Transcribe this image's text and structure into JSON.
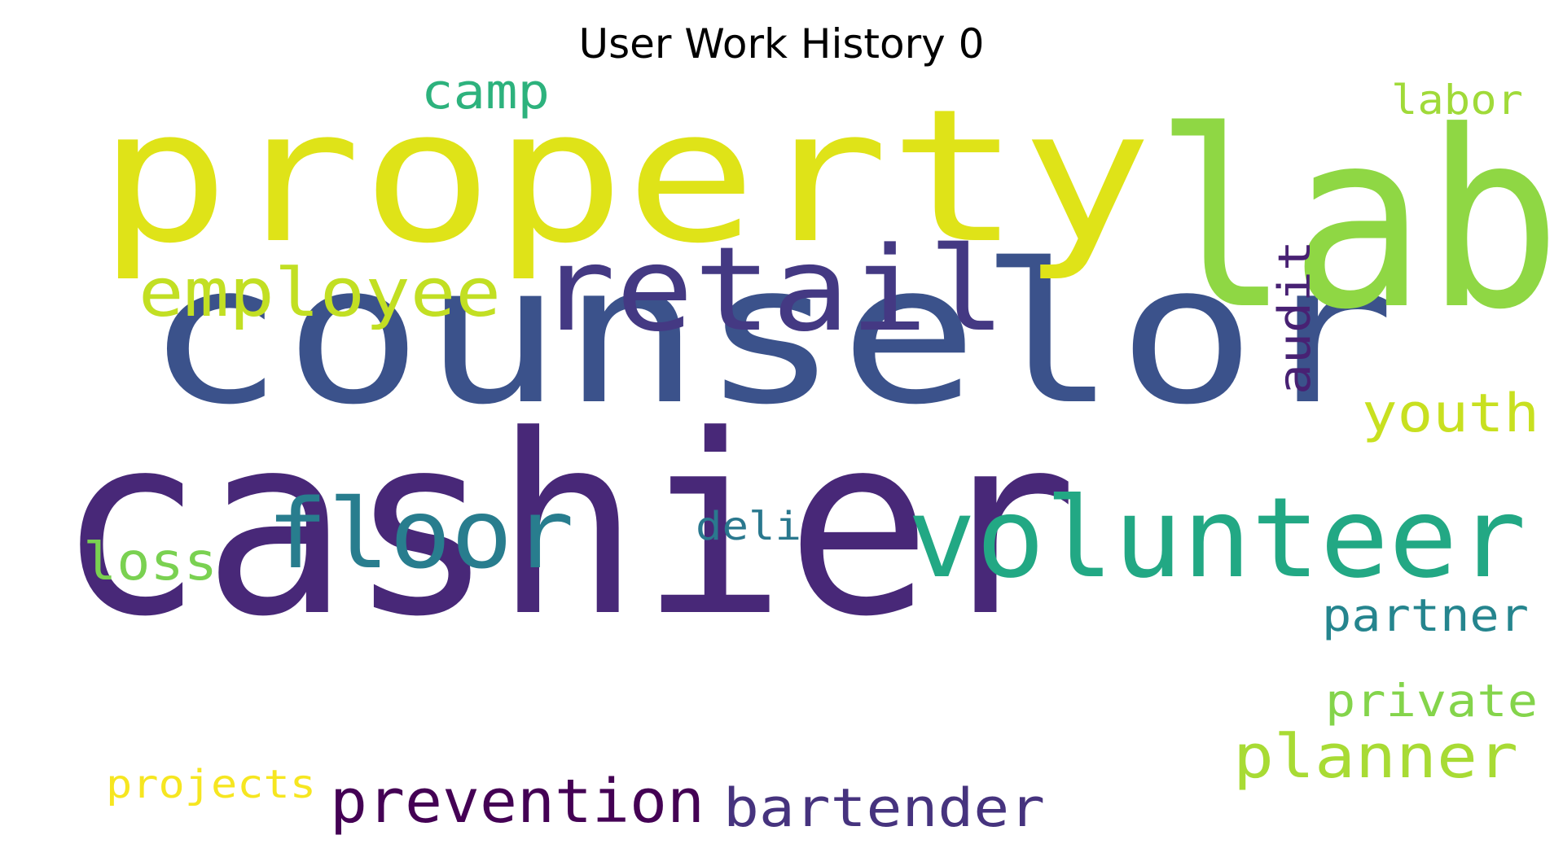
{
  "title": "User Work History 0",
  "words": [
    {
      "text": "cashier",
      "color": "#482878"
    },
    {
      "text": "counselor",
      "color": "#3b528b"
    },
    {
      "text": "property",
      "color": "#dfe318"
    },
    {
      "text": "lab",
      "color": "#8fd744"
    },
    {
      "text": "retail",
      "color": "#443983"
    },
    {
      "text": "volunteer",
      "color": "#22a884"
    },
    {
      "text": "floor",
      "color": "#287d8e"
    },
    {
      "text": "employee",
      "color": "#c2df23"
    },
    {
      "text": "planner",
      "color": "#a8db34"
    },
    {
      "text": "prevention",
      "color": "#440154"
    },
    {
      "text": "bartender",
      "color": "#46337e"
    },
    {
      "text": "youth",
      "color": "#c8e020"
    },
    {
      "text": "audit",
      "color": "#482173"
    },
    {
      "text": "camp",
      "color": "#2db27d"
    },
    {
      "text": "labor",
      "color": "#a0da39"
    },
    {
      "text": "loss",
      "color": "#7ad151"
    },
    {
      "text": "partner",
      "color": "#25858e"
    },
    {
      "text": "private",
      "color": "#84d44b"
    },
    {
      "text": "deli",
      "color": "#2a788e"
    },
    {
      "text": "projects",
      "color": "#f6e620"
    }
  ]
}
